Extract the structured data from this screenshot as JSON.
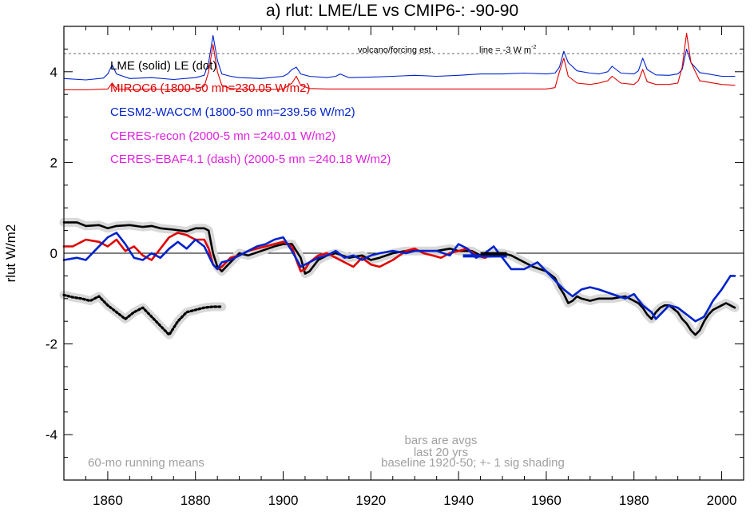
{
  "chart_data": {
    "type": "line",
    "title": "a) rlut: LME/LE vs CMIP6-: -90-90",
    "ylabel": "rlut W/m2",
    "xlabel": "",
    "xlim": [
      1850,
      2005
    ],
    "ylim": [
      -5,
      5
    ],
    "x_ticks": [
      1860,
      1880,
      1900,
      1920,
      1940,
      1960,
      1980,
      2000
    ],
    "y_ticks": [
      4,
      2,
      0,
      -2,
      -4
    ],
    "zero_line": 0,
    "legend": [
      {
        "text": "LME (solid)   LE (dot)",
        "color": "#000000"
      },
      {
        "text": "MIROC6 (1800-50 mn=230.05 W/m2)",
        "color": "#e00000"
      },
      {
        "text": "CESM2-WACCM (1800-50 mn=239.56 W/m2)",
        "color": "#0022cc"
      },
      {
        "text": "CERES-recon (2000-5 mn =240.01 W/m2)",
        "color": "#e020e0"
      },
      {
        "text": "CERES-EBAF4.1 (dash) (2000-5 mn =240.18 W/m2)",
        "color": "#e020e0"
      }
    ],
    "annotations": {
      "volcano_label": "volcano/forcing est.",
      "line_label": "line = -3 W m",
      "line_label_sup": "-2",
      "volcano_ref_line": 4.4,
      "running_mean_note": "60-mo running means",
      "bars_note_1": "bars are avgs",
      "bars_note_2": "last 20 yrs",
      "baseline_note": "baseline 1920-50; +- 1 sig shading"
    },
    "series": [
      {
        "name": "LME",
        "color": "#000000",
        "style": "solid",
        "x": [
          1850,
          1853,
          1855,
          1858,
          1860,
          1862,
          1865,
          1868,
          1870,
          1872,
          1875,
          1878,
          1880,
          1882,
          1883,
          1884,
          1885,
          1886,
          1887,
          1889,
          1890,
          1892,
          1895,
          1898,
          1900,
          1902,
          1904,
          1905,
          1906,
          1908,
          1910,
          1912,
          1915,
          1918,
          1920,
          1922,
          1925,
          1928,
          1930,
          1932,
          1935,
          1938,
          1940,
          1943,
          1945,
          1948,
          1950,
          1952,
          1955,
          1957,
          1960,
          1962,
          1963,
          1964,
          1965,
          1966,
          1967,
          1968,
          1970,
          1972,
          1975,
          1978,
          1980,
          1981,
          1982,
          1983,
          1984,
          1985,
          1986,
          1987,
          1988,
          1990,
          1991,
          1992,
          1993,
          1994,
          1995,
          1996,
          1997,
          1998,
          2000,
          2001,
          2002,
          2003
        ],
        "values": [
          0.68,
          0.68,
          0.6,
          0.62,
          0.55,
          0.6,
          0.62,
          0.58,
          0.6,
          0.55,
          0.52,
          0.48,
          0.55,
          0.55,
          0.5,
          0.0,
          -0.3,
          -0.4,
          -0.3,
          -0.1,
          0.0,
          -0.05,
          0.05,
          0.15,
          0.2,
          0.2,
          -0.1,
          -0.45,
          -0.4,
          -0.15,
          -0.05,
          0.0,
          -0.1,
          -0.05,
          -0.15,
          -0.1,
          0.0,
          0.05,
          0.05,
          0.05,
          0.05,
          0.1,
          0.05,
          0.05,
          -0.05,
          0.0,
          0.0,
          -0.05,
          -0.2,
          -0.3,
          -0.4,
          -0.55,
          -0.75,
          -0.9,
          -1.1,
          -1.05,
          -0.95,
          -1.0,
          -1.05,
          -1.0,
          -1.0,
          -0.95,
          -1.05,
          -1.1,
          -1.2,
          -1.35,
          -1.45,
          -1.3,
          -1.2,
          -1.15,
          -1.15,
          -1.3,
          -1.45,
          -1.55,
          -1.7,
          -1.8,
          -1.7,
          -1.5,
          -1.35,
          -1.25,
          -1.15,
          -1.1,
          -1.15,
          -1.2
        ]
      },
      {
        "name": "LE",
        "color": "#000000",
        "style": "dot",
        "x": [
          1850,
          1852,
          1854,
          1856,
          1858,
          1860,
          1862,
          1864,
          1866,
          1868,
          1870,
          1872,
          1874,
          1876,
          1878,
          1880,
          1882,
          1884,
          1886
        ],
        "values": [
          -0.92,
          -0.97,
          -1.0,
          -1.05,
          -0.95,
          -1.15,
          -1.3,
          -1.45,
          -1.3,
          -1.2,
          -1.4,
          -1.6,
          -1.8,
          -1.5,
          -1.3,
          -1.25,
          -1.2,
          -1.18,
          -1.18
        ]
      },
      {
        "name": "MIROC6",
        "color": "#e00000",
        "style": "solid",
        "x": [
          1850,
          1852,
          1855,
          1858,
          1860,
          1862,
          1864,
          1866,
          1868,
          1870,
          1872,
          1874,
          1876,
          1878,
          1880,
          1882,
          1883,
          1884,
          1885,
          1886,
          1888,
          1890,
          1892,
          1894,
          1896,
          1898,
          1900,
          1902,
          1903,
          1904,
          1905,
          1906,
          1908,
          1910,
          1912,
          1914,
          1916,
          1918,
          1920,
          1922,
          1925,
          1928,
          1930,
          1932,
          1934,
          1936,
          1938,
          1940,
          1942,
          1944,
          1946,
          1948,
          1950
        ],
        "values": [
          0.15,
          0.15,
          0.3,
          0.25,
          0.15,
          0.3,
          0.05,
          0.15,
          -0.05,
          -0.15,
          0.1,
          0.35,
          0.45,
          0.4,
          0.3,
          0.3,
          0.1,
          -0.25,
          -0.35,
          -0.3,
          -0.1,
          -0.05,
          0.05,
          0.1,
          0.15,
          0.2,
          0.25,
          0.15,
          -0.15,
          -0.4,
          -0.35,
          -0.2,
          -0.05,
          0.0,
          -0.1,
          -0.2,
          -0.3,
          -0.1,
          -0.25,
          -0.3,
          -0.15,
          0.05,
          0.1,
          0.0,
          -0.05,
          -0.1,
          0.0,
          0.05,
          0.1,
          -0.05,
          -0.1,
          0.0,
          0.0
        ]
      },
      {
        "name": "CESM2-WACCM",
        "color": "#0022cc",
        "style": "solid",
        "x": [
          1850,
          1853,
          1855,
          1857,
          1860,
          1862,
          1864,
          1866,
          1868,
          1870,
          1872,
          1874,
          1876,
          1878,
          1880,
          1882,
          1884,
          1885,
          1886,
          1888,
          1890,
          1892,
          1894,
          1896,
          1898,
          1900,
          1902,
          1904,
          1906,
          1908,
          1910,
          1912,
          1914,
          1916,
          1918,
          1920,
          1922,
          1925,
          1928,
          1930,
          1932,
          1935,
          1938,
          1940,
          1942,
          1944,
          1946,
          1948,
          1950,
          1952,
          1955,
          1958,
          1960,
          1962,
          1963,
          1964,
          1966,
          1968,
          1970,
          1972,
          1975,
          1978,
          1980,
          1982,
          1984,
          1985,
          1986,
          1988,
          1990,
          1992,
          1994,
          1996,
          1998,
          2000,
          2001,
          2002,
          2003
        ],
        "values": [
          -0.15,
          -0.1,
          -0.15,
          0.05,
          0.35,
          0.45,
          0.2,
          -0.1,
          -0.15,
          0.0,
          -0.1,
          0.1,
          0.25,
          0.1,
          0.3,
          0.15,
          -0.25,
          -0.35,
          -0.2,
          -0.15,
          -0.05,
          0.05,
          0.15,
          0.2,
          0.3,
          0.35,
          0.05,
          -0.3,
          -0.2,
          -0.1,
          -0.05,
          0.05,
          -0.1,
          -0.05,
          -0.15,
          -0.05,
          0.0,
          0.05,
          0.0,
          0.05,
          0.05,
          0.05,
          -0.05,
          0.2,
          0.1,
          -0.1,
          0.0,
          0.15,
          -0.1,
          -0.35,
          -0.35,
          -0.2,
          -0.4,
          -0.6,
          -0.7,
          -0.8,
          -0.95,
          -0.8,
          -0.75,
          -0.8,
          -0.9,
          -1.0,
          -0.9,
          -1.15,
          -1.3,
          -1.45,
          -1.35,
          -1.15,
          -1.2,
          -1.35,
          -1.5,
          -1.4,
          -1.05,
          -0.8,
          -0.65,
          -0.5,
          -0.5
        ]
      },
      {
        "name": "volcano/forcing est. (CESM2-WACCM)",
        "color": "#0022cc",
        "style": "solid",
        "x": [
          1850,
          1855,
          1859,
          1860,
          1861,
          1862,
          1865,
          1870,
          1875,
          1880,
          1882,
          1883,
          1884,
          1885,
          1886,
          1888,
          1890,
          1895,
          1900,
          1901,
          1902,
          1903,
          1904,
          1906,
          1910,
          1912,
          1913,
          1915,
          1920,
          1925,
          1930,
          1935,
          1940,
          1945,
          1950,
          1955,
          1960,
          1962,
          1963,
          1964,
          1965,
          1967,
          1970,
          1972,
          1974,
          1975,
          1977,
          1980,
          1981,
          1982,
          1983,
          1985,
          1988,
          1990,
          1991,
          1992,
          1993,
          1995,
          2000,
          2003
        ],
        "values": [
          3.85,
          3.82,
          3.86,
          3.95,
          4.15,
          3.95,
          3.85,
          3.87,
          3.83,
          3.87,
          3.92,
          4.2,
          4.8,
          4.25,
          3.95,
          3.9,
          3.87,
          3.85,
          3.9,
          3.95,
          4.05,
          4.1,
          3.95,
          3.9,
          3.87,
          3.9,
          3.95,
          3.87,
          3.88,
          3.9,
          3.92,
          3.9,
          3.92,
          3.95,
          3.95,
          3.97,
          3.95,
          3.97,
          4.1,
          4.45,
          4.2,
          4.02,
          3.97,
          3.95,
          4.0,
          4.12,
          3.97,
          3.95,
          4.02,
          4.3,
          4.05,
          3.93,
          3.92,
          3.95,
          4.05,
          4.5,
          4.2,
          3.98,
          3.9,
          3.9
        ]
      },
      {
        "name": "volcano/forcing est. (MIROC6)",
        "color": "#e00000",
        "style": "solid",
        "x": [
          1850,
          1855,
          1860,
          1861,
          1862,
          1865,
          1870,
          1875,
          1880,
          1882,
          1883,
          1884,
          1885,
          1886,
          1888,
          1890,
          1895,
          1900,
          1902,
          1903,
          1904,
          1906,
          1910,
          1915,
          1920,
          1925,
          1930,
          1935,
          1940,
          1945,
          1950,
          1955,
          1960,
          1962,
          1963,
          1964,
          1965,
          1967,
          1970,
          1972,
          1974,
          1975,
          1977,
          1980,
          1981,
          1982,
          1983,
          1985,
          1988,
          1990,
          1991,
          1992,
          1993,
          1995,
          2000,
          2003
        ],
        "values": [
          3.6,
          3.6,
          3.62,
          3.75,
          3.62,
          3.6,
          3.62,
          3.6,
          3.62,
          3.68,
          4.0,
          4.6,
          4.0,
          3.7,
          3.63,
          3.62,
          3.6,
          3.62,
          3.75,
          3.9,
          3.7,
          3.63,
          3.62,
          3.62,
          3.62,
          3.62,
          3.62,
          3.62,
          3.62,
          3.62,
          3.62,
          3.62,
          3.62,
          3.65,
          4.0,
          4.3,
          3.9,
          3.75,
          3.72,
          3.75,
          3.8,
          3.9,
          3.75,
          3.72,
          3.8,
          4.05,
          3.78,
          3.72,
          3.72,
          3.75,
          4.1,
          4.85,
          4.2,
          3.8,
          3.72,
          3.7
        ]
      }
    ],
    "bars": [
      {
        "series": "CESM2-WACCM",
        "color": "#0022cc",
        "x_start": 1941,
        "x_end": 1951,
        "value": -0.06
      },
      {
        "series": "LME",
        "color": "#000000",
        "x_start": 1945,
        "x_end": 1951,
        "value": -0.01
      }
    ]
  }
}
